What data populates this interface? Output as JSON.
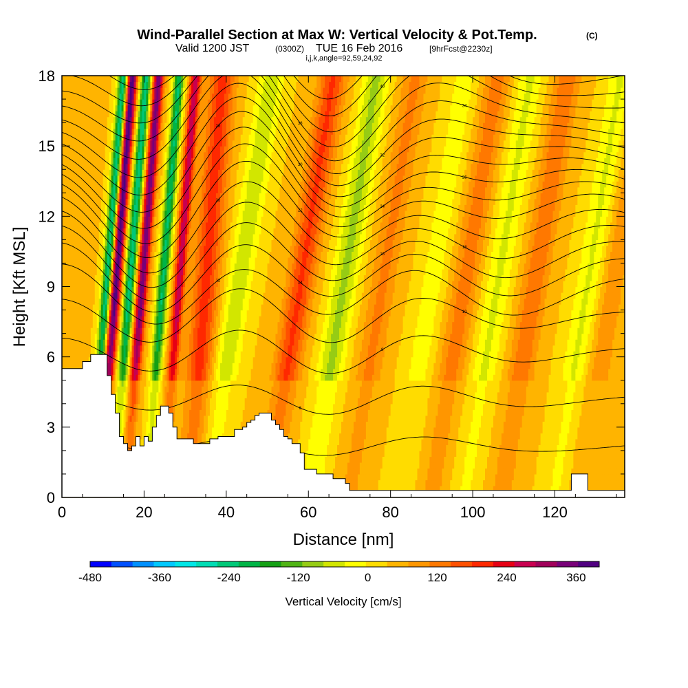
{
  "title": "Wind-Parallel Section at Max W: Vertical Velocity & Pot.Temp.",
  "copyright_mark": "(C)",
  "subtitle_valid": "Valid 1200 JST",
  "subtitle_utc": "(0300Z)",
  "subtitle_date": "TUE 16 Feb 2016",
  "subtitle_fcst": "[9hrFcst@2230z]",
  "subtitle_indices": "i,j,k,angle=92,59,24,92",
  "chart_data": {
    "type": "heatmap",
    "xlabel": "Distance [nm]",
    "ylabel": "Height [Kft MSL]",
    "xlim": [
      0,
      137
    ],
    "ylim": [
      0,
      18
    ],
    "x_ticks": [
      "0",
      "20",
      "40",
      "60",
      "80",
      "100",
      "120"
    ],
    "y_ticks": [
      "0",
      "3",
      "6",
      "9",
      "12",
      "15",
      "18"
    ],
    "colorbar": {
      "label": "Vertical Velocity [cm/s]",
      "tick_labels": [
        "-480",
        "-360",
        "-240",
        "-120",
        "0",
        "120",
        "240",
        "360"
      ],
      "range": [
        -480,
        400
      ],
      "colors": [
        "#0000ff",
        "#0050ff",
        "#0090ff",
        "#00c8ff",
        "#00e6e6",
        "#00dcb4",
        "#00c878",
        "#00b446",
        "#14a014",
        "#50b414",
        "#96cc14",
        "#d2e600",
        "#ffff00",
        "#ffdc00",
        "#ffb400",
        "#ff9600",
        "#ff7800",
        "#ff5000",
        "#ff2800",
        "#e60014",
        "#c80050",
        "#a0005a",
        "#780078",
        "#500080"
      ]
    },
    "terrain_profile": {
      "x": [
        0,
        4,
        5,
        7,
        8,
        10,
        11,
        12,
        13,
        14,
        15,
        16,
        17,
        18,
        19,
        20,
        21,
        22,
        23,
        24,
        25,
        26,
        27,
        28,
        30,
        32,
        34,
        36,
        38,
        40,
        42,
        43,
        44,
        45,
        46,
        47,
        48,
        50,
        51,
        52,
        53,
        54,
        55,
        56,
        57,
        58,
        59,
        60,
        61,
        62,
        63,
        64,
        65,
        66,
        67,
        68,
        69,
        70,
        72,
        80,
        90,
        100,
        110,
        119,
        120,
        121,
        122,
        123,
        124,
        125,
        126,
        127,
        128,
        129,
        130,
        137
      ],
      "y": [
        5.5,
        5.5,
        5.8,
        6.1,
        6.1,
        6.1,
        5.2,
        4.4,
        3.6,
        2.6,
        2.3,
        2.0,
        2.2,
        2.6,
        2.2,
        2.6,
        2.4,
        3.0,
        3.5,
        3.9,
        3.9,
        3.6,
        3.0,
        2.5,
        2.5,
        2.3,
        2.3,
        2.5,
        2.6,
        2.6,
        2.9,
        2.9,
        3.0,
        3.2,
        3.3,
        3.5,
        3.6,
        3.6,
        3.3,
        3.1,
        2.9,
        2.6,
        2.5,
        2.3,
        2.3,
        1.9,
        1.2,
        1.2,
        1.2,
        1.0,
        1.0,
        1.0,
        1.0,
        0.8,
        0.8,
        0.8,
        0.6,
        0.3,
        0.3,
        0.3,
        0.3,
        0.3,
        0.3,
        0.3,
        0.3,
        0.3,
        0.3,
        0.3,
        1.0,
        1.0,
        1.0,
        1.0,
        0.3,
        0.3,
        0.3,
        0.3
      ]
    },
    "vertical_velocity_bands": [
      {
        "center_x": 11.0,
        "peak_w": -300
      },
      {
        "center_x": 13.0,
        "peak_w": 380
      },
      {
        "center_x": 16.5,
        "peak_w": -280
      },
      {
        "center_x": 19.5,
        "peak_w": 320
      },
      {
        "center_x": 24.5,
        "peak_w": -260
      },
      {
        "center_x": 28.5,
        "peak_w": 250
      },
      {
        "center_x": 35.0,
        "peak_w": 160
      },
      {
        "center_x": 43.0,
        "peak_w": -100
      },
      {
        "center_x": 58.0,
        "peak_w": 150
      },
      {
        "center_x": 68.5,
        "peak_w": -120
      },
      {
        "center_x": 78.0,
        "peak_w": 80
      },
      {
        "center_x": 90.0,
        "peak_w": -60
      },
      {
        "center_x": 98.0,
        "peak_w": 90
      },
      {
        "center_x": 106.0,
        "peak_w": -80
      },
      {
        "center_x": 115.0,
        "peak_w": 100
      },
      {
        "center_x": 128.0,
        "peak_w": -80
      },
      {
        "center_x": 134.0,
        "peak_w": 60
      }
    ],
    "theta_contours": {
      "base_heights": [
        2.2,
        4.2,
        6.2,
        7.7,
        8.7,
        9.5,
        10.2,
        10.9,
        11.6,
        12.3,
        12.9,
        13.5,
        14.1,
        14.7,
        15.3,
        15.9,
        16.5,
        17.1,
        17.7,
        18.3,
        18.9
      ],
      "wave_phase_x": 45,
      "labels": [
        "3",
        "6",
        "8",
        "10",
        "12",
        "14",
        "16",
        "18",
        "20",
        "22",
        "24",
        "26",
        "28",
        "30",
        "32",
        "34",
        "36",
        "38",
        "40",
        "42",
        "44"
      ]
    }
  }
}
